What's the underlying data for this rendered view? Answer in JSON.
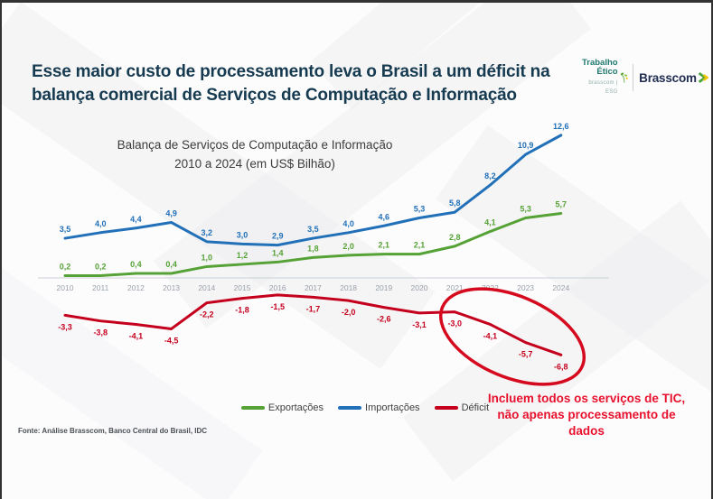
{
  "header": {
    "title_lines": [
      "Esse maior custo de processamento leva o Brasil a um déficit na",
      "balança comercial de Serviços de Computação e Informação"
    ]
  },
  "logo": {
    "trabalho_line1": "Trabalho",
    "trabalho_line2": "Ético",
    "trabalho_sub": "brasscom | ESG",
    "brasscom": "Brasscom"
  },
  "chart_data": {
    "type": "line",
    "title": "Balança de Serviços de Computação e Informação",
    "subtitle": "2010 a 2024 (em US$ Bilhão)",
    "categories": [
      "2010",
      "2011",
      "2012",
      "2013",
      "2014",
      "2015",
      "2016",
      "2017",
      "2018",
      "2019",
      "2020",
      "2021",
      "2022",
      "2023",
      "2024"
    ],
    "ylim": [
      -8,
      14
    ],
    "grid": false,
    "legend_position": "bottom",
    "series": [
      {
        "name": "Exportações",
        "color": "#56a236",
        "values": [
          0.2,
          0.2,
          0.4,
          0.4,
          1.0,
          1.2,
          1.4,
          1.8,
          2.0,
          2.1,
          2.1,
          2.8,
          4.1,
          5.3,
          5.7
        ],
        "labels": [
          "0,2",
          "0,2",
          "0,4",
          "0,4",
          "1,0",
          "1,2",
          "1,4",
          "1,8",
          "2,0",
          "2,1",
          "2,1",
          "2,8",
          "4,1",
          "5,3",
          "5,7"
        ]
      },
      {
        "name": "Importações",
        "color": "#2170b8",
        "values": [
          3.5,
          4.0,
          4.4,
          4.9,
          3.2,
          3.0,
          2.9,
          3.5,
          4.0,
          4.6,
          5.3,
          5.8,
          8.2,
          10.9,
          12.6
        ],
        "labels": [
          "3,5",
          "4,0",
          "4,4",
          "4,9",
          "3,2",
          "3,0",
          "2,9",
          "3,5",
          "4,0",
          "4,6",
          "5,3",
          "5,8",
          "8,2",
          "10,9",
          "12,6"
        ]
      },
      {
        "name": "Déficit",
        "color": "#c4001d",
        "values": [
          -3.3,
          -3.8,
          -4.1,
          -4.5,
          -2.2,
          -1.8,
          -1.5,
          -1.7,
          -2.0,
          -2.6,
          -3.1,
          -3.0,
          -4.1,
          -5.7,
          -6.8
        ],
        "labels": [
          "-3,3",
          "-3,8",
          "-4,1",
          "-4,5",
          "-2,2",
          "-1,8",
          "-1,5",
          "-1,7",
          "-2,0",
          "-2,6",
          "-3,1",
          "-3,0",
          "-4,1",
          "-5,7",
          "-6,8"
        ]
      }
    ],
    "annotation_circle": "déficit 2021–2024 circled in red",
    "circle_color": "#d50a1e"
  },
  "annotation": {
    "lines": [
      "Incluem todos os serviços de TIC,",
      "não apenas processamento de",
      "dados"
    ],
    "color": "#e8112d"
  },
  "footer": {
    "source": "Fonte: Análise Brasscom, Banco Central do Brasil, IDC"
  }
}
